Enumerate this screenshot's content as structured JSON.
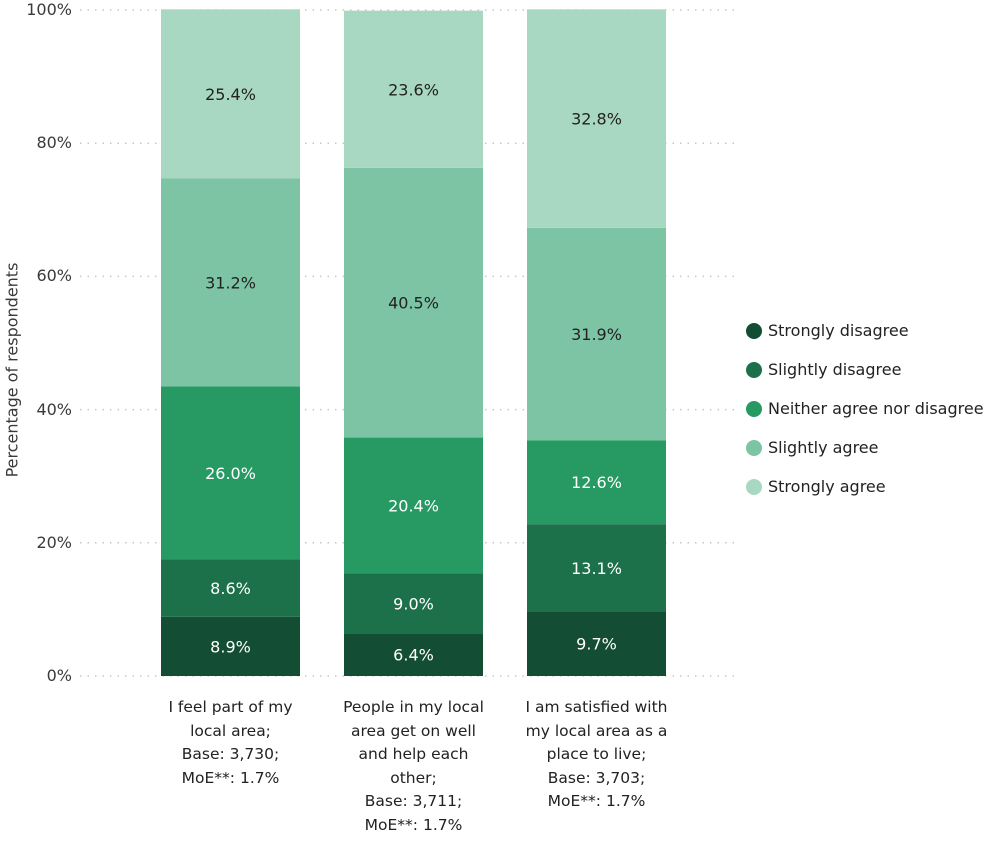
{
  "chart_data": {
    "type": "bar",
    "stacked": true,
    "ylabel": "Percentage of respondents",
    "ylim": [
      0,
      100
    ],
    "yticks": [
      "0%",
      "20%",
      "40%",
      "60%",
      "80%",
      "100%"
    ],
    "grid": true,
    "legend_position": "right",
    "categories": [
      [
        "I feel part of my",
        "local area;",
        "Base: 3,730;",
        "MoE**: 1.7%"
      ],
      [
        "People in my local",
        "area get on well",
        "and help each",
        "other;",
        "Base: 3,711;",
        "MoE**: 1.7%"
      ],
      [
        "I am satisfied with",
        "my local area as a",
        "place to live;",
        "Base: 3,703;",
        "MoE**: 1.7%"
      ]
    ],
    "series": [
      {
        "name": "Strongly disagree",
        "color": "#134d33",
        "values": [
          8.9,
          6.4,
          9.7
        ],
        "labels": [
          "8.9%",
          "6.4%",
          "9.7%"
        ]
      },
      {
        "name": "Slightly disagree",
        "color": "#1d714a",
        "values": [
          8.6,
          9.0,
          13.1
        ],
        "labels": [
          "8.6%",
          "9.0%",
          "13.1%"
        ]
      },
      {
        "name": "Neither agree nor disagree",
        "color": "#279a63",
        "values": [
          26.0,
          20.4,
          12.6
        ],
        "labels": [
          "26.0%",
          "20.4%",
          "12.6%"
        ]
      },
      {
        "name": "Slightly agree",
        "color": "#7dc4a5",
        "values": [
          31.2,
          40.5,
          31.9
        ],
        "labels": [
          "31.2%",
          "40.5%",
          "31.9%"
        ]
      },
      {
        "name": "Strongly agree",
        "color": "#a9d8c2",
        "values": [
          25.4,
          23.6,
          32.8
        ],
        "labels": [
          "25.4%",
          "23.6%",
          "32.8%"
        ]
      }
    ]
  }
}
